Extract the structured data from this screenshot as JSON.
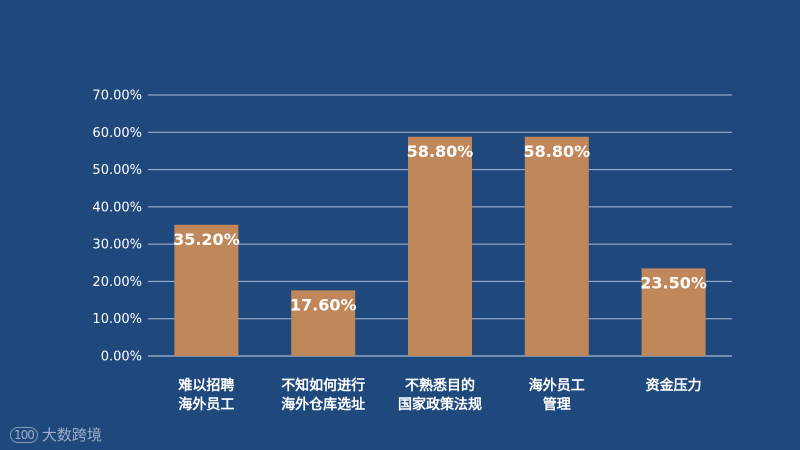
{
  "chart_data": {
    "type": "bar",
    "categories": [
      [
        "难以招聘",
        "海外员工"
      ],
      [
        "不知如何进行",
        "海外仓库选址"
      ],
      [
        "不熟悉目的",
        "国家政策法规"
      ],
      [
        "海外员工",
        "管理"
      ],
      [
        "资金压力"
      ]
    ],
    "values": [
      35.2,
      17.6,
      58.8,
      58.8,
      23.5
    ],
    "value_labels": [
      "35.20%",
      "17.60%",
      "58.80%",
      "58.80%",
      "23.50%"
    ],
    "yticks": [
      0,
      10,
      20,
      30,
      40,
      50,
      60,
      70
    ],
    "ytick_labels": [
      "0.00%",
      "10.00%",
      "20.00%",
      "30.00%",
      "40.00%",
      "50.00%",
      "60.00%",
      "70.00%"
    ],
    "ylim": [
      0,
      70
    ],
    "grid": true,
    "bar_color": "#c0875a",
    "background": "#1f497d",
    "title": "",
    "xlabel": "",
    "ylabel": ""
  },
  "watermark": {
    "logo": "100",
    "text": "大数跨境"
  }
}
